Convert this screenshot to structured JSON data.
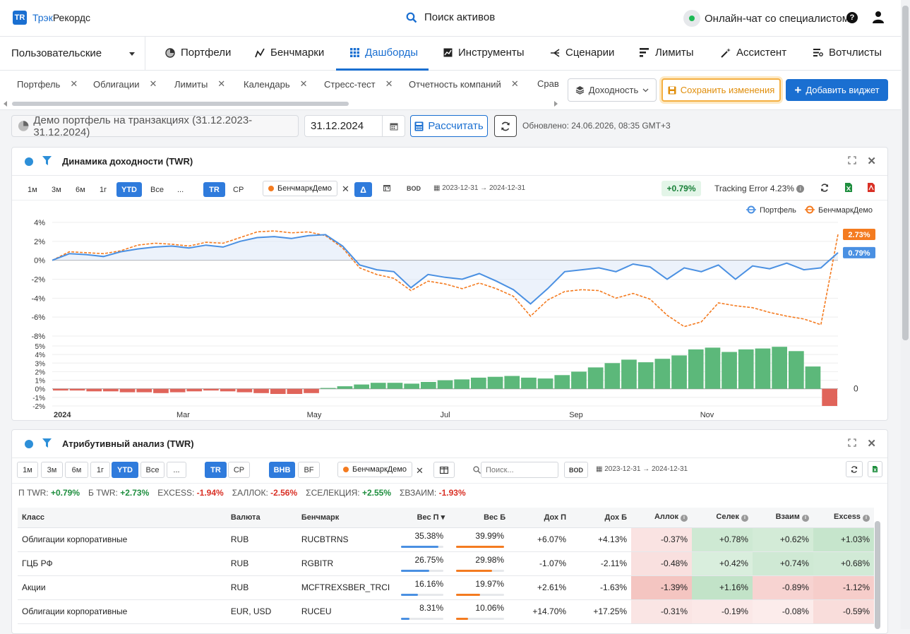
{
  "app": {
    "logo_badge": "TR",
    "logo_part1": "Трэк",
    "logo_part2": "Рекордс"
  },
  "header": {
    "search_label": "Поиск активов",
    "chat_label": "Онлайн-чат со специалистом",
    "help_glyph": "?"
  },
  "nav": {
    "selector_label": "Пользовательские",
    "items": [
      {
        "label": "Портфели",
        "icon": "pie-icon"
      },
      {
        "label": "Бенчмарки",
        "icon": "trend-icon"
      },
      {
        "label": "Дашборды",
        "icon": "grid-icon"
      },
      {
        "label": "Инструменты",
        "icon": "chart-icon"
      },
      {
        "label": "Сценарии",
        "icon": "branch-icon"
      },
      {
        "label": "Лимиты",
        "icon": "bars-icon"
      },
      {
        "label": "Ассистент",
        "icon": "wand-icon"
      },
      {
        "label": "Вотчлисты",
        "icon": "list-icon"
      }
    ]
  },
  "dash_tabs": [
    "Портфель",
    "Облигации",
    "Лимиты",
    "Календарь",
    "Стресс-тест",
    "Отчетность компаний",
    "Срав"
  ],
  "toolbar": {
    "metric_select": "Доходность",
    "save_label": "Сохранить изменения",
    "add_label": "Добавить виджет"
  },
  "controls": {
    "portfolio": "Демо портфель на транзакциях (31.12.2023-31.12.2024)",
    "date": "31.12.2024",
    "calc_label": "Рассчитать",
    "updated": "Обновлено: 24.06.2026, 08:35 GMT+3"
  },
  "panel1": {
    "title": "Динамика доходности (TWR)",
    "periods": [
      "1м",
      "3м",
      "6м",
      "1г",
      "YTD",
      "Все",
      "..."
    ],
    "modes": [
      "TR",
      "CP"
    ],
    "benchmark": "БенчмаркДемо",
    "delta": "Δ",
    "bod": "BOD",
    "range": "2023-12-31 → 2024-12-31",
    "excess": "+0.79%",
    "tracking_error": "Tracking Error 4.23%"
  },
  "chart_data": {
    "type": "line",
    "legend": [
      "Портфель",
      "БенчмаркДемо"
    ],
    "y_ticks": [
      "4%",
      "2%",
      "0%",
      "-2%",
      "-4%",
      "-6%",
      "-8%"
    ],
    "y_range": [
      -8,
      4
    ],
    "x_ticks": [
      "2024",
      "Mar",
      "May",
      "Jul",
      "Sep",
      "Nov"
    ],
    "end_labels": {
      "portfolio": "0.79%",
      "benchmark": "2.73%"
    },
    "series": [
      {
        "name": "Портфель",
        "color": "#4a90e2",
        "values": [
          0,
          0.7,
          0.6,
          0.4,
          0.9,
          1.2,
          1.4,
          1.5,
          1.3,
          1.6,
          1.4,
          2.0,
          2.4,
          2.5,
          2.3,
          2.6,
          2.7,
          1.5,
          -0.5,
          -1.0,
          -1.2,
          -2.9,
          -1.5,
          -1.8,
          -2.0,
          -1.4,
          -2.2,
          -3.1,
          -4.6,
          -3.0,
          -1.2,
          -1.0,
          -0.8,
          -1.2,
          -0.4,
          -0.7,
          -2.0,
          -0.8,
          -1.2,
          -0.5,
          -2.0,
          -0.6,
          -0.9,
          -0.3,
          -1.0,
          -0.8,
          0.8
        ]
      },
      {
        "name": "БенчмаркДемо",
        "color": "#f47b20",
        "values": [
          0,
          0.9,
          0.8,
          0.7,
          1.0,
          1.6,
          1.8,
          1.7,
          1.5,
          1.9,
          1.8,
          2.4,
          3.0,
          3.1,
          2.9,
          3.0,
          2.6,
          1.3,
          -0.8,
          -1.5,
          -1.9,
          -3.2,
          -2.2,
          -2.5,
          -3.0,
          -2.4,
          -3.0,
          -3.8,
          -5.9,
          -4.2,
          -3.3,
          -3.1,
          -3.2,
          -4.0,
          -3.5,
          -4.1,
          -5.8,
          -7.0,
          -6.5,
          -4.5,
          -4.8,
          -5.0,
          -5.5,
          -5.9,
          -6.2,
          -6.8,
          2.73
        ]
      }
    ],
    "sub_chart": {
      "type": "bar",
      "label": "0",
      "y_ticks": [
        "5%",
        "4%",
        "3%",
        "2%",
        "1%",
        "0%",
        "-1%",
        "-2%"
      ],
      "y_range": [
        -2,
        5
      ],
      "values": [
        -0.2,
        -0.2,
        -0.3,
        -0.3,
        -0.4,
        -0.4,
        -0.5,
        -0.4,
        -0.3,
        -0.2,
        -0.3,
        -0.4,
        -0.5,
        -0.6,
        -0.6,
        -0.5,
        0.1,
        0.3,
        0.5,
        0.7,
        0.7,
        0.6,
        0.8,
        1.0,
        1.1,
        1.3,
        1.4,
        1.5,
        1.3,
        1.2,
        1.6,
        2.0,
        2.5,
        3.0,
        3.4,
        3.1,
        3.5,
        3.9,
        4.6,
        4.8,
        4.3,
        4.6,
        4.7,
        4.9,
        4.4,
        2.6,
        -2.0
      ]
    }
  },
  "panel2": {
    "title": "Атрибутивный анализ (TWR)",
    "periods": [
      "1м",
      "3м",
      "6м",
      "1г",
      "YTD",
      "Все",
      "..."
    ],
    "modes": [
      "TR",
      "CP"
    ],
    "methods": [
      "BHB",
      "BF"
    ],
    "benchmark": "БенчмаркДемо",
    "search_placeholder": "Поиск...",
    "bod": "BOD",
    "range": "2023-12-31 → 2024-12-31",
    "metrics": [
      {
        "label": "П TWR:",
        "value": "+0.79%",
        "tone": "g"
      },
      {
        "label": "Б TWR:",
        "value": "+2.73%",
        "tone": "g"
      },
      {
        "label": "EXCESS:",
        "value": "-1.94%",
        "tone": "r"
      },
      {
        "label": "ΣАЛЛОК:",
        "value": "-2.56%",
        "tone": "r"
      },
      {
        "label": "ΣСЕЛЕКЦИЯ:",
        "value": "+2.55%",
        "tone": "g"
      },
      {
        "label": "ΣВЗАИМ:",
        "value": "-1.93%",
        "tone": "r"
      }
    ],
    "columns": [
      "Класс",
      "Валюта",
      "Бенчмарк",
      "Вес П",
      "Вес Б",
      "Дох П",
      "Дох Б",
      "Аллок",
      "Селек",
      "Взаим",
      "Excess"
    ],
    "rows": [
      {
        "cls": "Облигации корпоративные",
        "cur": "RUB",
        "bench": "RUCBTRNS",
        "wp": "35.38%",
        "wb": "39.99%",
        "wpf": 0.88,
        "wbf": 1.0,
        "dp": "+6.07%",
        "db": "+4.13%",
        "al": "-0.37%",
        "se": "+0.78%",
        "vz": "+0.62%",
        "ex": "+1.03%"
      },
      {
        "cls": "ГЦБ РФ",
        "cur": "RUB",
        "bench": "RGBITR",
        "wp": "26.75%",
        "wb": "29.98%",
        "wpf": 0.66,
        "wbf": 0.75,
        "dp": "-1.07%",
        "db": "-2.11%",
        "al": "-0.48%",
        "se": "+0.42%",
        "vz": "+0.74%",
        "ex": "+0.68%"
      },
      {
        "cls": "Акции",
        "cur": "RUB",
        "bench": "MCFTREXSBER_TRCI",
        "wp": "16.16%",
        "wb": "19.97%",
        "wpf": 0.4,
        "wbf": 0.5,
        "dp": "+2.61%",
        "db": "-1.63%",
        "al": "-1.39%",
        "se": "+1.16%",
        "vz": "-0.89%",
        "ex": "-1.12%"
      },
      {
        "cls": "Облигации корпоративные",
        "cur": "EUR, USD",
        "bench": "RUCEU",
        "wp": "8.31%",
        "wb": "10.06%",
        "wpf": 0.2,
        "wbf": 0.25,
        "dp": "+14.70%",
        "db": "+17.25%",
        "al": "-0.31%",
        "se": "-0.19%",
        "vz": "-0.08%",
        "ex": "-0.59%"
      }
    ]
  }
}
